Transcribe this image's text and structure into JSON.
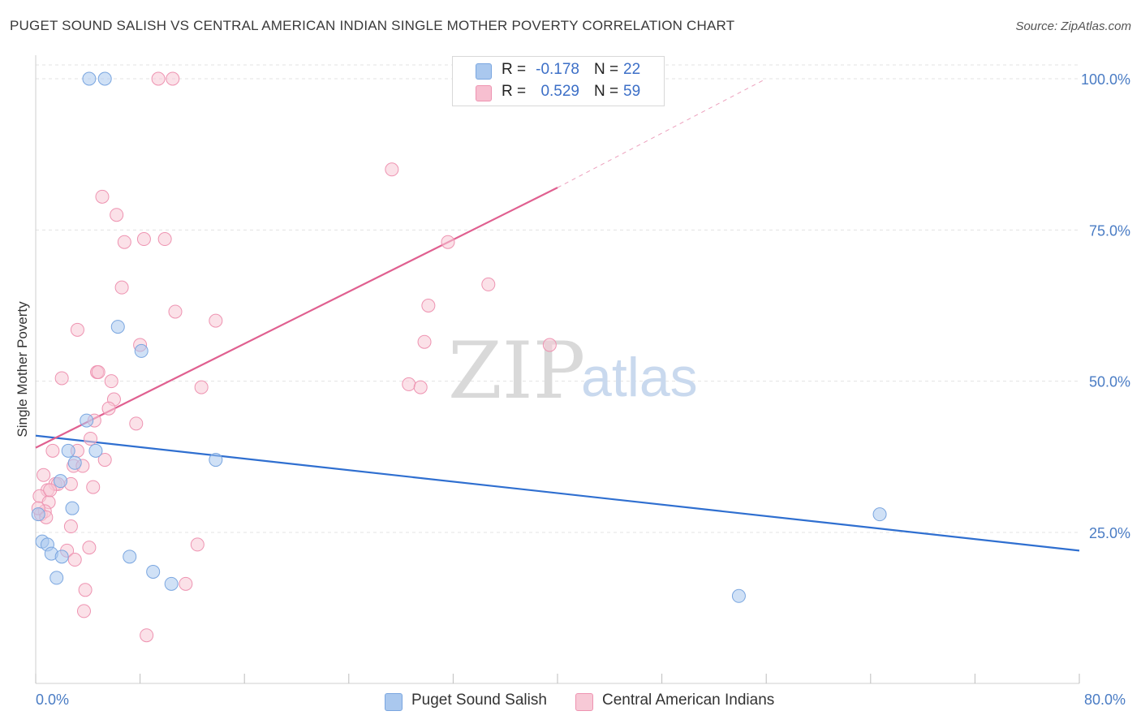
{
  "header": {
    "title": "PUGET SOUND SALISH VS CENTRAL AMERICAN INDIAN SINGLE MOTHER POVERTY CORRELATION CHART",
    "source": "Source: ZipAtlas.com"
  },
  "watermark": {
    "zip": "ZIP",
    "atlas": "atlas"
  },
  "legend_top": {
    "rows": [
      {
        "r_label": "R =",
        "r_value": "-0.178",
        "n_label": "N =",
        "n_value": "22",
        "color": "#aac8ee",
        "border": "#7aa6e0"
      },
      {
        "r_label": "R =",
        "r_value": "0.529",
        "n_label": "N =",
        "n_value": "59",
        "color": "#f7bfd0",
        "border": "#ee93b1"
      }
    ]
  },
  "legend_bottom": [
    {
      "label": "Puget Sound Salish",
      "color": "#aac8ee",
      "border": "#7aa6e0"
    },
    {
      "label": "Central American Indians",
      "color": "#f7c9d6",
      "border": "#ee93b1"
    }
  ],
  "axes": {
    "x_min_label": "0.0%",
    "x_max_label": "80.0%",
    "y_label": "Single Mother Poverty",
    "y_tick_labels": [
      "25.0%",
      "50.0%",
      "75.0%",
      "100.0%"
    ]
  },
  "chart_data": {
    "type": "scatter",
    "title": "PUGET SOUND SALISH VS CENTRAL AMERICAN INDIAN SINGLE MOTHER POVERTY CORRELATION CHART",
    "xlabel": "",
    "ylabel": "Single Mother Poverty",
    "xlim": [
      0,
      80
    ],
    "ylim": [
      0,
      102
    ],
    "y_ticks": [
      25,
      50,
      75,
      100
    ],
    "grid": true,
    "legend_position": "top-center",
    "series": [
      {
        "name": "Puget Sound Salish",
        "color": "#aac8ee",
        "stroke": "#7aa6e0",
        "line_color": "#2f6fd0",
        "r": -0.178,
        "n": 22,
        "trend": {
          "x": [
            0,
            80
          ],
          "y": [
            41,
            22
          ]
        },
        "points": [
          [
            4.1,
            100
          ],
          [
            5.3,
            100
          ],
          [
            6.3,
            59
          ],
          [
            8.1,
            55
          ],
          [
            3.9,
            43.5
          ],
          [
            4.6,
            38.5
          ],
          [
            2.5,
            38.5
          ],
          [
            3.0,
            36.5
          ],
          [
            1.9,
            33.5
          ],
          [
            2.8,
            29
          ],
          [
            0.2,
            28
          ],
          [
            0.5,
            23.5
          ],
          [
            0.9,
            23
          ],
          [
            1.2,
            21.5
          ],
          [
            2.0,
            21
          ],
          [
            7.2,
            21
          ],
          [
            1.6,
            17.5
          ],
          [
            9.0,
            18.5
          ],
          [
            10.4,
            16.5
          ],
          [
            13.8,
            37
          ],
          [
            64.7,
            28
          ],
          [
            53.9,
            14.5
          ]
        ]
      },
      {
        "name": "Central American Indians",
        "color": "#f7c9d6",
        "stroke": "#ee93b1",
        "line_color": "#e06090",
        "r": 0.529,
        "n": 59,
        "trend": {
          "x": [
            0,
            40
          ],
          "y": [
            39,
            82
          ]
        },
        "trend_dashed": {
          "x": [
            40,
            56
          ],
          "y": [
            82,
            100
          ]
        },
        "points": [
          [
            9.4,
            100
          ],
          [
            10.5,
            100
          ],
          [
            32.8,
            100
          ],
          [
            33.8,
            100
          ],
          [
            27.3,
            85
          ],
          [
            5.1,
            80.5
          ],
          [
            6.2,
            77.5
          ],
          [
            6.8,
            73
          ],
          [
            8.3,
            73.5
          ],
          [
            9.9,
            73.5
          ],
          [
            31.6,
            73
          ],
          [
            6.6,
            65.5
          ],
          [
            34.7,
            66
          ],
          [
            30.1,
            62.5
          ],
          [
            10.7,
            61.5
          ],
          [
            13.8,
            60
          ],
          [
            3.2,
            58.5
          ],
          [
            8.0,
            56
          ],
          [
            29.8,
            56.5
          ],
          [
            39.4,
            56
          ],
          [
            2.0,
            50.5
          ],
          [
            4.7,
            51.5
          ],
          [
            4.8,
            51.5
          ],
          [
            5.8,
            50
          ],
          [
            12.7,
            49
          ],
          [
            28.6,
            49.5
          ],
          [
            29.5,
            49
          ],
          [
            6.0,
            47
          ],
          [
            5.6,
            45.5
          ],
          [
            4.5,
            43.5
          ],
          [
            7.7,
            43
          ],
          [
            4.2,
            40.5
          ],
          [
            1.3,
            38.5
          ],
          [
            3.2,
            38.5
          ],
          [
            5.3,
            37
          ],
          [
            2.9,
            36
          ],
          [
            3.6,
            36
          ],
          [
            0.6,
            34.5
          ],
          [
            1.5,
            33
          ],
          [
            1.7,
            33
          ],
          [
            2.7,
            33
          ],
          [
            0.9,
            32
          ],
          [
            0.3,
            31
          ],
          [
            4.4,
            32.5
          ],
          [
            1.0,
            30
          ],
          [
            0.4,
            28
          ],
          [
            0.7,
            28.5
          ],
          [
            2.7,
            26
          ],
          [
            12.4,
            23
          ],
          [
            4.1,
            22.5
          ],
          [
            2.4,
            22
          ],
          [
            3.0,
            20.5
          ],
          [
            11.5,
            16.5
          ],
          [
            3.8,
            15.5
          ],
          [
            3.7,
            12
          ],
          [
            8.5,
            8
          ],
          [
            0.2,
            29
          ],
          [
            0.8,
            27.5
          ],
          [
            1.1,
            32
          ]
        ]
      }
    ]
  }
}
